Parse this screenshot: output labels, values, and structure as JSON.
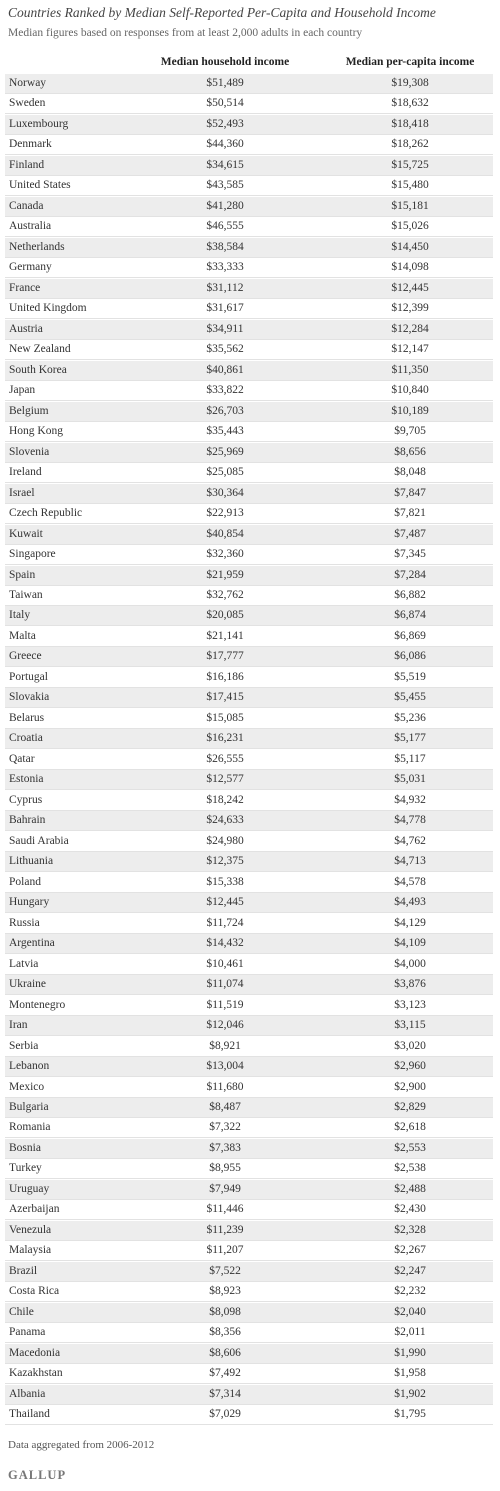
{
  "header": {
    "title": "Countries Ranked by Median Self-Reported Per-Capita and Household Income",
    "subtitle": "Median figures based on responses from at least 2,000 adults in each country"
  },
  "table": {
    "columns": [
      null,
      "Median household income",
      "Median per-capita income"
    ],
    "rows": [
      [
        "Norway",
        "$51,489",
        "$19,308"
      ],
      [
        "Sweden",
        "$50,514",
        "$18,632"
      ],
      [
        "Luxembourg",
        "$52,493",
        "$18,418"
      ],
      [
        "Denmark",
        "$44,360",
        "$18,262"
      ],
      [
        "Finland",
        "$34,615",
        "$15,725"
      ],
      [
        "United States",
        "$43,585",
        "$15,480"
      ],
      [
        "Canada",
        "$41,280",
        "$15,181"
      ],
      [
        "Australia",
        "$46,555",
        "$15,026"
      ],
      [
        "Netherlands",
        "$38,584",
        "$14,450"
      ],
      [
        "Germany",
        "$33,333",
        "$14,098"
      ],
      [
        "France",
        "$31,112",
        "$12,445"
      ],
      [
        "United Kingdom",
        "$31,617",
        "$12,399"
      ],
      [
        "Austria",
        "$34,911",
        "$12,284"
      ],
      [
        "New Zealand",
        "$35,562",
        "$12,147"
      ],
      [
        "South Korea",
        "$40,861",
        "$11,350"
      ],
      [
        "Japan",
        "$33,822",
        "$10,840"
      ],
      [
        "Belgium",
        "$26,703",
        "$10,189"
      ],
      [
        "Hong Kong",
        "$35,443",
        "$9,705"
      ],
      [
        "Slovenia",
        "$25,969",
        "$8,656"
      ],
      [
        "Ireland",
        "$25,085",
        "$8,048"
      ],
      [
        "Israel",
        "$30,364",
        "$7,847"
      ],
      [
        "Czech Republic",
        "$22,913",
        "$7,821"
      ],
      [
        "Kuwait",
        "$40,854",
        "$7,487"
      ],
      [
        "Singapore",
        "$32,360",
        "$7,345"
      ],
      [
        "Spain",
        "$21,959",
        "$7,284"
      ],
      [
        "Taiwan",
        "$32,762",
        "$6,882"
      ],
      [
        "Italy",
        "$20,085",
        "$6,874"
      ],
      [
        "Malta",
        "$21,141",
        "$6,869"
      ],
      [
        "Greece",
        "$17,777",
        "$6,086"
      ],
      [
        "Portugal",
        "$16,186",
        "$5,519"
      ],
      [
        "Slovakia",
        "$17,415",
        "$5,455"
      ],
      [
        "Belarus",
        "$15,085",
        "$5,236"
      ],
      [
        "Croatia",
        "$16,231",
        "$5,177"
      ],
      [
        "Qatar",
        "$26,555",
        "$5,117"
      ],
      [
        "Estonia",
        "$12,577",
        "$5,031"
      ],
      [
        "Cyprus",
        "$18,242",
        "$4,932"
      ],
      [
        "Bahrain",
        "$24,633",
        "$4,778"
      ],
      [
        "Saudi Arabia",
        "$24,980",
        "$4,762"
      ],
      [
        "Lithuania",
        "$12,375",
        "$4,713"
      ],
      [
        "Poland",
        "$15,338",
        "$4,578"
      ],
      [
        "Hungary",
        "$12,445",
        "$4,493"
      ],
      [
        "Russia",
        "$11,724",
        "$4,129"
      ],
      [
        "Argentina",
        "$14,432",
        "$4,109"
      ],
      [
        "Latvia",
        "$10,461",
        "$4,000"
      ],
      [
        "Ukraine",
        "$11,074",
        "$3,876"
      ],
      [
        "Montenegro",
        "$11,519",
        "$3,123"
      ],
      [
        "Iran",
        "$12,046",
        "$3,115"
      ],
      [
        "Serbia",
        "$8,921",
        "$3,020"
      ],
      [
        "Lebanon",
        "$13,004",
        "$2,960"
      ],
      [
        "Mexico",
        "$11,680",
        "$2,900"
      ],
      [
        "Bulgaria",
        "$8,487",
        "$2,829"
      ],
      [
        "Romania",
        "$7,322",
        "$2,618"
      ],
      [
        "Bosnia",
        "$7,383",
        "$2,553"
      ],
      [
        "Turkey",
        "$8,955",
        "$2,538"
      ],
      [
        "Uruguay",
        "$7,949",
        "$2,488"
      ],
      [
        "Azerbaijan",
        "$11,446",
        "$2,430"
      ],
      [
        "Venezula",
        "$11,239",
        "$2,328"
      ],
      [
        "Malaysia",
        "$11,207",
        "$2,267"
      ],
      [
        "Brazil",
        "$7,522",
        "$2,247"
      ],
      [
        "Costa Rica",
        "$8,923",
        "$2,232"
      ],
      [
        "Chile",
        "$8,098",
        "$2,040"
      ],
      [
        "Panama",
        "$8,356",
        "$2,011"
      ],
      [
        "Macedonia",
        "$8,606",
        "$1,990"
      ],
      [
        "Kazakhstan",
        "$7,492",
        "$1,958"
      ],
      [
        "Albania",
        "$7,314",
        "$1,902"
      ],
      [
        "Thailand",
        "$7,029",
        "$1,795"
      ]
    ]
  },
  "footer": {
    "note": "Data aggregated from 2006-2012",
    "brand": "GALLUP"
  }
}
